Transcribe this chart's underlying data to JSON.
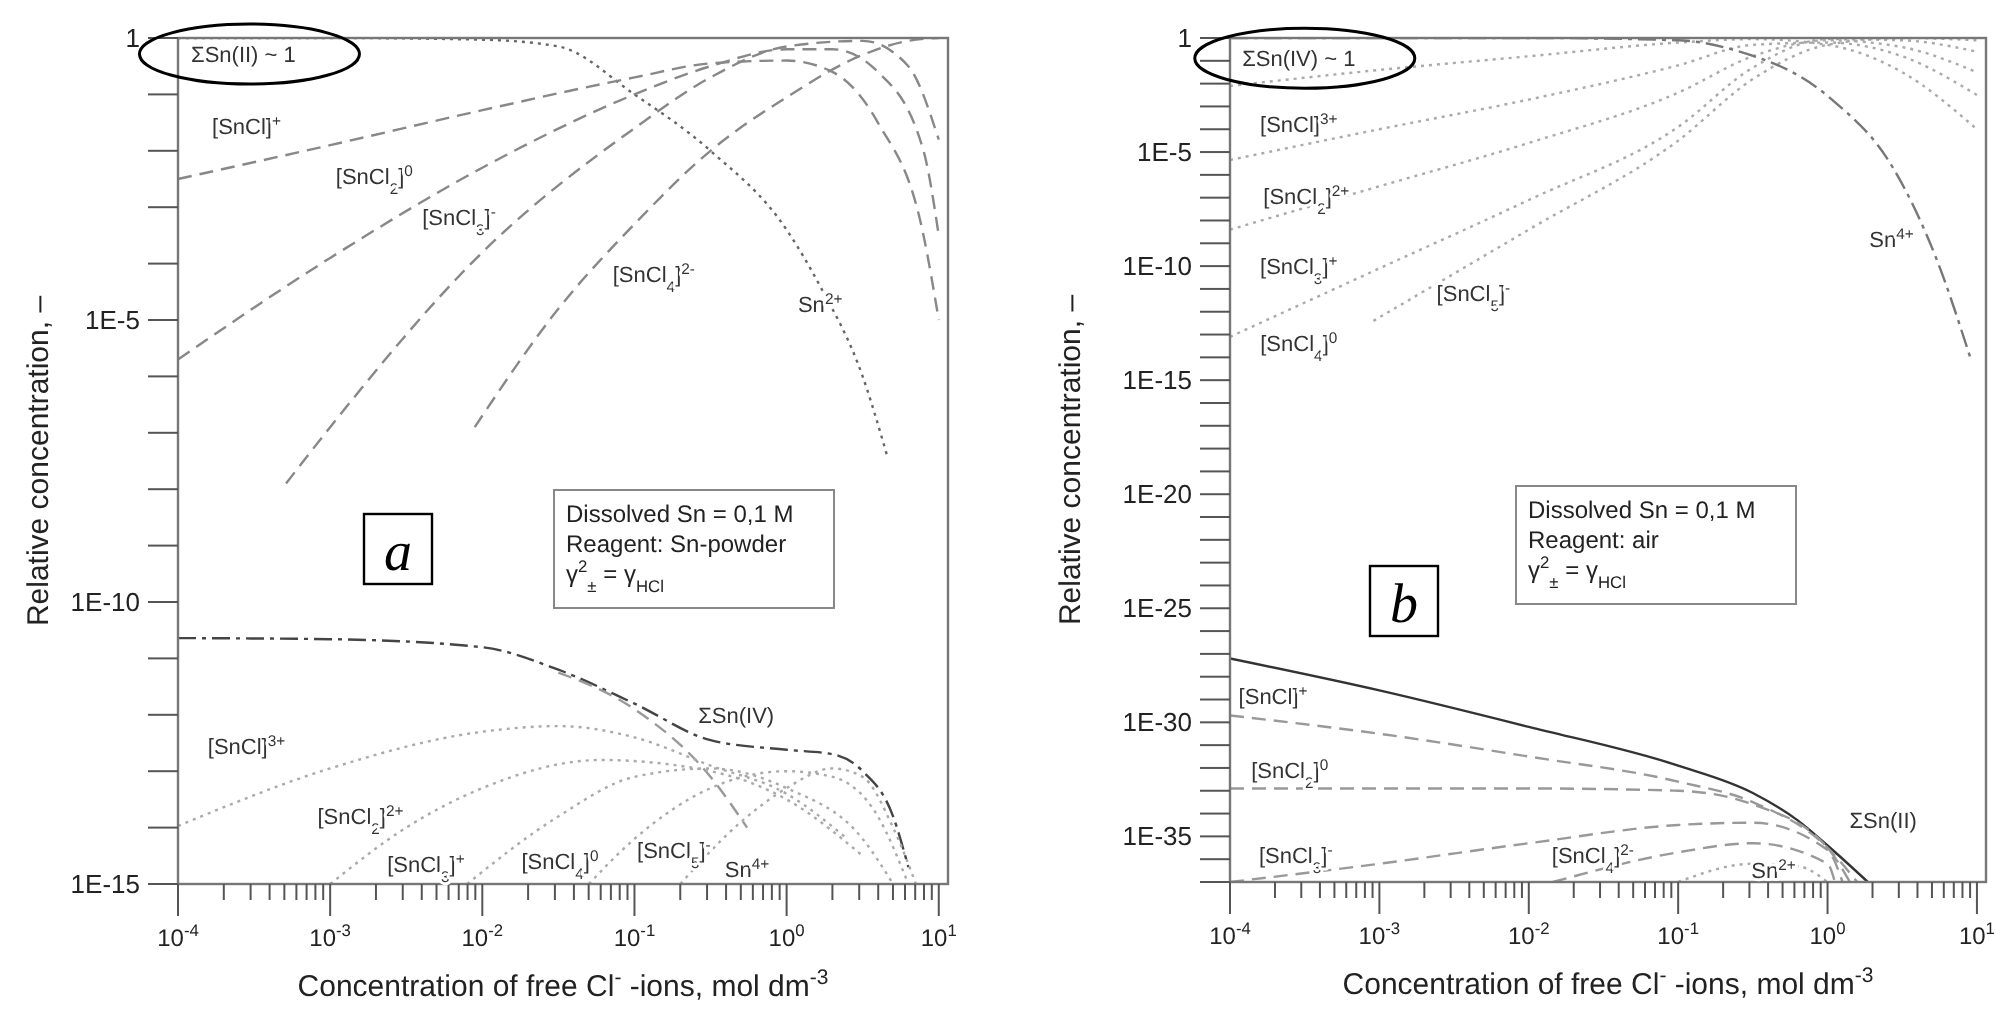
{
  "chart_data": [
    {
      "type": "line",
      "title": "a",
      "xlabel": "Concentration of free Cl$^{-}$ -ions, mol dm$^{-3}$",
      "ylabel": "Relative concentration, –",
      "log": "xy",
      "xlim": [
        0.0001,
        11.5
      ],
      "ylim": [
        1e-15,
        1
      ],
      "xticks": [
        {
          "value": 0.0001,
          "label": "10$^{-4}$"
        },
        {
          "value": 0.0002,
          "label": null
        },
        {
          "value": 0.0003,
          "label": null
        },
        {
          "value": 0.0004,
          "label": null
        },
        {
          "value": 0.0005,
          "label": null
        },
        {
          "value": 0.0006,
          "label": null
        },
        {
          "value": 0.0007,
          "label": null
        },
        {
          "value": 0.0008,
          "label": null
        },
        {
          "value": 0.0009,
          "label": null
        },
        {
          "value": 0.001,
          "label": "10$^{-3}$"
        },
        {
          "value": 0.002,
          "label": null
        },
        {
          "value": 0.003,
          "label": null
        },
        {
          "value": 0.004,
          "label": null
        },
        {
          "value": 0.005,
          "label": null
        },
        {
          "value": 0.006,
          "label": null
        },
        {
          "value": 0.007,
          "label": null
        },
        {
          "value": 0.008,
          "label": null
        },
        {
          "value": 0.009,
          "label": null
        },
        {
          "value": 0.01,
          "label": "10$^{-2}$"
        },
        {
          "value": 0.02,
          "label": null
        },
        {
          "value": 0.03,
          "label": null
        },
        {
          "value": 0.04,
          "label": null
        },
        {
          "value": 0.05,
          "label": null
        },
        {
          "value": 0.06,
          "label": null
        },
        {
          "value": 0.07,
          "label": null
        },
        {
          "value": 0.08,
          "label": null
        },
        {
          "value": 0.09,
          "label": null
        },
        {
          "value": 0.1,
          "label": "10$^{-1}$"
        },
        {
          "value": 0.2,
          "label": null
        },
        {
          "value": 0.3,
          "label": null
        },
        {
          "value": 0.4,
          "label": null
        },
        {
          "value": 0.5,
          "label": null
        },
        {
          "value": 0.6,
          "label": null
        },
        {
          "value": 0.7,
          "label": null
        },
        {
          "value": 0.8,
          "label": null
        },
        {
          "value": 0.9,
          "label": null
        },
        {
          "value": 1,
          "label": "10$^{0}$"
        },
        {
          "value": 2,
          "label": null
        },
        {
          "value": 3,
          "label": null
        },
        {
          "value": 4,
          "label": null
        },
        {
          "value": 5,
          "label": null
        },
        {
          "value": 6,
          "label": null
        },
        {
          "value": 7,
          "label": null
        },
        {
          "value": 8,
          "label": null
        },
        {
          "value": 9,
          "label": null
        },
        {
          "value": 10,
          "label": "10$^{1}$"
        }
      ],
      "yticks": [
        1,
        {
          "value": 0.1,
          "label": null
        },
        {
          "value": 0.01,
          "label": null
        },
        {
          "value": 0.001,
          "label": null
        },
        {
          "value": 0.0001,
          "label": null
        },
        {
          "value": 1e-05,
          "label": "1E-5"
        },
        {
          "value": 1e-06,
          "label": null
        },
        {
          "value": 1e-07,
          "label": null
        },
        {
          "value": 1e-08,
          "label": null
        },
        {
          "value": 1e-09,
          "label": null
        },
        {
          "value": 1e-10,
          "label": "1E-10"
        },
        {
          "value": 1e-11,
          "label": null
        },
        {
          "value": 1e-12,
          "label": null
        },
        {
          "value": 1e-13,
          "label": null
        },
        {
          "value": 1e-14,
          "label": null
        },
        {
          "value": 1e-15,
          "label": "1E-15"
        }
      ],
      "series": [
        {
          "color": "#666666",
          "line_style": "dotted",
          "x": [
            0.0001,
            0.001,
            0.01,
            0.0316,
            0.1,
            0.316,
            1,
            1.66,
            3.16,
            4.57
          ],
          "values": [
            1,
            1,
            0.933,
            0.708,
            0.1,
            0.01,
            0.000398,
            3.98e-05,
            1e-06,
            3.98e-08
          ]
        },
        {
          "color": "#888888",
          "line_style": "dashed",
          "x": [
            0.0001,
            0.001,
            0.01,
            0.1,
            0.316,
            1,
            2,
            3.98,
            7.94,
            10
          ],
          "values": [
            0.00316,
            0.0126,
            0.0525,
            0.2,
            0.355,
            0.398,
            0.251,
            0.0316,
            0.000316,
            1e-05
          ]
        },
        {
          "color": "#888888",
          "line_style": "dashed",
          "x": [
            0.0001,
            0.001,
            0.01,
            0.1,
            0.316,
            1,
            2,
            3.98,
            7.94,
            10
          ],
          "values": [
            2e-06,
            0.000126,
            0.00501,
            0.1,
            0.316,
            0.631,
            0.631,
            0.251,
            0.01,
            0.000316
          ]
        },
        {
          "color": "#888888",
          "line_style": "dashed",
          "x": [
            0.000513,
            0.001,
            0.01,
            0.1,
            0.316,
            1,
            3.16,
            6.31,
            10
          ],
          "values": [
            1.26e-08,
            1.26e-07,
            0.000158,
            0.0251,
            0.2,
            0.708,
            0.891,
            0.316,
            0.0158
          ]
        },
        {
          "color": "#888888",
          "line_style": "dashed",
          "x": [
            0.00891,
            0.0316,
            0.1,
            0.316,
            1,
            3.16,
            6.31,
            10
          ],
          "values": [
            1.26e-07,
            1.58e-05,
            0.000501,
            0.01,
            0.0891,
            0.501,
            0.891,
            1
          ]
        },
        {
          "color": "#444444",
          "line_style": "dashdot",
          "x": [
            0.0001,
            0.001,
            0.01,
            0.0316,
            0.1,
            0.316,
            1,
            2,
            3.16,
            5.01,
            6.31
          ],
          "values": [
            2.29e-11,
            2.19e-11,
            1.58e-11,
            6.31e-12,
            1.58e-12,
            3.55e-13,
            2.4e-13,
            2e-13,
            1e-13,
            1.58e-14,
            2e-15
          ]
        },
        {
          "color": "#999999",
          "line_style": "dashed",
          "x": [
            0.0316,
            0.1,
            0.316,
            0.55
          ],
          "values": [
            5.62e-12,
            1.26e-12,
            7.94e-14,
            1e-14
          ]
        },
        {
          "color": "#aaaaaa",
          "line_style": "dotted",
          "x": [
            0.0001,
            0.001,
            0.01,
            0.0316,
            0.1,
            0.316,
            1,
            2.51
          ],
          "values": [
            1.07e-14,
            1.12e-13,
            5.01e-13,
            6.31e-13,
            3.98e-13,
            1.26e-13,
            3.98e-14,
            6.31e-15
          ]
        },
        {
          "color": "#aaaaaa",
          "line_style": "dotted",
          "x": [
            0.001,
            0.00316,
            0.01,
            0.0603,
            0.316,
            1,
            3.16
          ],
          "values": [
            1e-15,
            1e-14,
            5.01e-14,
            1.58e-13,
            1e-13,
            3.16e-14,
            3.16e-15
          ]
        },
        {
          "color": "#aaaaaa",
          "line_style": "dotted",
          "x": [
            0.00794,
            0.0316,
            0.1,
            0.316,
            1,
            3.16,
            5.01
          ],
          "values": [
            1e-15,
            1.58e-14,
            7.94e-14,
            1.12e-13,
            5.01e-14,
            6.31e-15,
            1e-15
          ]
        },
        {
          "color": "#aaaaaa",
          "line_style": "dotted",
          "x": [
            0.0501,
            0.1,
            0.316,
            1,
            2,
            3.98,
            6.31
          ],
          "values": [
            1e-15,
            6.31e-15,
            5.01e-14,
            1e-13,
            7.94e-14,
            1.58e-14,
            1e-15
          ]
        },
        {
          "color": "#aaaaaa",
          "line_style": "dotted",
          "x": [
            0.2,
            0.501,
            1,
            2,
            3.16,
            5.01,
            7.08
          ],
          "values": [
            1e-15,
            1.26e-14,
            5.01e-14,
            1.12e-13,
            7.94e-14,
            1e-14,
            1e-15
          ]
        }
      ],
      "annotations": [
        "ΣSn(II) ~ 1",
        "[SnCl]$^{+}$",
        "[SnCl$_{2}$]$^{0}$",
        "[SnCl$_{3}$]$^{-}$",
        "[SnCl$_{4}$]$^{2-}$",
        "Sn$^{2+}$",
        "ΣSn(IV)",
        "[SnCl]$^{3+}$",
        "[SnCl$_{2}$]$^{2+}$",
        "[SnCl$_{3}$]$^{+}$",
        "[SnCl$_{4}$]$^{0}$",
        "[SnCl$_{5}$]$^{-}$",
        "Sn$^{4+}$",
        "Dissolved Sn = 0,1 M",
        "Reagent: Sn-powder",
        "γ$^{2}$$_{±}$ = γ$_{HCl}$"
      ]
    },
    {
      "type": "line",
      "title": "b",
      "xlabel": "Concentration of free Cl$^{-}$ -ions,  mol dm$^{-3}$",
      "ylabel": "Relative concentration, –",
      "log": "xy",
      "xlim": [
        0.0001,
        11.5
      ],
      "ylim": [
        1e-37,
        1
      ],
      "xticks": [
        {
          "value": 0.0001,
          "label": "10$^{-4}$"
        },
        {
          "value": 0.0002,
          "label": null
        },
        {
          "value": 0.0003,
          "label": null
        },
        {
          "value": 0.0004,
          "label": null
        },
        {
          "value": 0.0005,
          "label": null
        },
        {
          "value": 0.0006,
          "label": null
        },
        {
          "value": 0.0007,
          "label": null
        },
        {
          "value": 0.0008,
          "label": null
        },
        {
          "value": 0.0009,
          "label": null
        },
        {
          "value": 0.001,
          "label": "10$^{-3}$"
        },
        {
          "value": 0.002,
          "label": null
        },
        {
          "value": 0.003,
          "label": null
        },
        {
          "value": 0.004,
          "label": null
        },
        {
          "value": 0.005,
          "label": null
        },
        {
          "value": 0.006,
          "label": null
        },
        {
          "value": 0.007,
          "label": null
        },
        {
          "value": 0.008,
          "label": null
        },
        {
          "value": 0.009,
          "label": null
        },
        {
          "value": 0.01,
          "label": "10$^{-2}$"
        },
        {
          "value": 0.02,
          "label": null
        },
        {
          "value": 0.03,
          "label": null
        },
        {
          "value": 0.04,
          "label": null
        },
        {
          "value": 0.05,
          "label": null
        },
        {
          "value": 0.06,
          "label": null
        },
        {
          "value": 0.07,
          "label": null
        },
        {
          "value": 0.08,
          "label": null
        },
        {
          "value": 0.09,
          "label": null
        },
        {
          "value": 0.1,
          "label": "10$^{-1}$"
        },
        {
          "value": 0.2,
          "label": null
        },
        {
          "value": 0.3,
          "label": null
        },
        {
          "value": 0.4,
          "label": null
        },
        {
          "value": 0.5,
          "label": null
        },
        {
          "value": 0.6,
          "label": null
        },
        {
          "value": 0.7,
          "label": null
        },
        {
          "value": 0.8,
          "label": null
        },
        {
          "value": 0.9,
          "label": null
        },
        {
          "value": 1,
          "label": "10$^{0}$"
        },
        {
          "value": 2,
          "label": null
        },
        {
          "value": 3,
          "label": null
        },
        {
          "value": 4,
          "label": null
        },
        {
          "value": 5,
          "label": null
        },
        {
          "value": 6,
          "label": null
        },
        {
          "value": 7,
          "label": null
        },
        {
          "value": 8,
          "label": null
        },
        {
          "value": 9,
          "label": null
        },
        {
          "value": 10,
          "label": "10$^{1}$"
        }
      ],
      "yticks": [
        1,
        {
          "value": 0.1,
          "label": null
        },
        {
          "value": 0.01,
          "label": null
        },
        {
          "value": 0.001,
          "label": null
        },
        {
          "value": 0.0001,
          "label": null
        },
        {
          "value": 1e-05,
          "label": "1E-5"
        },
        {
          "value": 1e-06,
          "label": null
        },
        {
          "value": 1e-07,
          "label": null
        },
        {
          "value": 1e-08,
          "label": null
        },
        {
          "value": 1e-09,
          "label": null
        },
        {
          "value": 1e-10,
          "label": "1E-10"
        },
        {
          "value": 1e-11,
          "label": null
        },
        {
          "value": 1e-12,
          "label": null
        },
        {
          "value": 1e-13,
          "label": null
        },
        {
          "value": 1e-14,
          "label": null
        },
        {
          "value": 1e-15,
          "label": "1E-15"
        },
        {
          "value": 1e-16,
          "label": null
        },
        {
          "value": 1e-17,
          "label": null
        },
        {
          "value": 1e-18,
          "label": null
        },
        {
          "value": 1e-19,
          "label": null
        },
        {
          "value": 1e-20,
          "label": "1E-20"
        },
        {
          "value": 1e-21,
          "label": null
        },
        {
          "value": 1e-22,
          "label": null
        },
        {
          "value": 1e-23,
          "label": null
        },
        {
          "value": 1e-24,
          "label": null
        },
        {
          "value": 1e-25,
          "label": "1E-25"
        },
        {
          "value": 1e-26,
          "label": null
        },
        {
          "value": 1e-27,
          "label": null
        },
        {
          "value": 1e-28,
          "label": null
        },
        {
          "value": 1e-29,
          "label": null
        },
        {
          "value": 1e-30,
          "label": "1E-30"
        },
        {
          "value": 1e-31,
          "label": null
        },
        {
          "value": 1e-32,
          "label": null
        },
        {
          "value": 1e-33,
          "label": null
        },
        {
          "value": 1e-34,
          "label": null
        },
        {
          "value": 1e-35,
          "label": "1E-35"
        },
        {
          "value": 1e-36,
          "label": null
        },
        {
          "value": 1e-37,
          "label": null
        }
      ],
      "series": [
        {
          "color": "#aaaaaa",
          "line_style": "dotted",
          "x": [
            0.0001,
            0.001,
            0.01,
            0.1,
            0.316,
            1,
            3.16,
            10
          ],
          "values": [
            0.00794,
            0.0398,
            0.158,
            0.631,
            0.891,
            0.501,
            0.0316,
            0.0001
          ]
        },
        {
          "color": "#aaaaaa",
          "line_style": "dotted",
          "x": [
            0.0001,
            0.001,
            0.01,
            0.1,
            0.316,
            1,
            3.16,
            10
          ],
          "values": [
            4.47e-06,
            0.0001,
            0.002,
            0.0631,
            0.501,
            0.631,
            0.158,
            0.00316
          ]
        },
        {
          "color": "#aaaaaa",
          "line_style": "dotted",
          "x": [
            0.0001,
            0.001,
            0.01,
            0.1,
            0.316,
            1,
            3.16,
            10
          ],
          "values": [
            3.98e-09,
            3.16e-07,
            2.51e-05,
            0.00398,
            0.158,
            0.794,
            0.398,
            0.0316
          ]
        },
        {
          "color": "#aaaaaa",
          "line_style": "dotted",
          "x": [
            0.0001,
            0.001,
            0.01,
            0.1,
            0.316,
            1,
            3.16,
            10
          ],
          "values": [
            7.94e-14,
            7.94e-11,
            7.94e-08,
            0.000126,
            0.0501,
            0.891,
            0.794,
            0.251
          ]
        },
        {
          "color": "#aaaaaa",
          "line_style": "dotted",
          "x": [
            0.000912,
            0.01,
            0.1,
            0.316,
            1,
            3.16,
            10
          ],
          "values": [
            3.98e-13,
            3.98e-09,
            3.16e-05,
            0.0158,
            0.501,
            1,
            0.794
          ]
        },
        {
          "color": "#777777",
          "line_style": "dashdot",
          "x": [
            0.0001,
            0.01,
            0.1,
            0.229,
            1.07,
            2.69,
            5.37,
            9.12
          ],
          "values": [
            1,
            1,
            0.794,
            0.316,
            0.002,
            2.51e-06,
            2e-10,
            7.94e-15
          ]
        },
        {
          "color": "#333333",
          "line_style": "solid",
          "x": [
            0.0001,
            0.001,
            0.01,
            0.1,
            0.316,
            0.631,
            1,
            1.86
          ],
          "values": [
            6.31e-28,
            2.51e-29,
            6.31e-31,
            1.26e-32,
            7.94e-34,
            5.01e-35,
            3.98e-36,
            1e-37
          ]
        },
        {
          "color": "#999999",
          "line_style": "dashed",
          "x": [
            0.0001,
            0.001,
            0.01,
            0.1,
            0.316,
            1,
            1.58
          ],
          "values": [
            2e-30,
            3.16e-31,
            3.16e-32,
            2.51e-33,
            3.16e-34,
            3.16e-36,
            1e-37
          ]
        },
        {
          "color": "#999999",
          "line_style": "dashed",
          "x": [
            0.0001,
            0.01,
            0.1,
            0.316,
            1,
            1.41
          ],
          "values": [
            1.26e-33,
            1.26e-33,
            1e-33,
            2.51e-34,
            3.16e-36,
            1e-37
          ]
        },
        {
          "color": "#999999",
          "line_style": "dashed",
          "x": [
            0.0001,
            0.001,
            0.01,
            0.1,
            0.316,
            1,
            1.26
          ],
          "values": [
            1e-37,
            6.31e-37,
            5.01e-36,
            3.16e-35,
            3.98e-35,
            2.51e-36,
            1e-37
          ]
        },
        {
          "color": "#999999",
          "line_style": "dashed",
          "x": [
            0.0145,
            0.1,
            0.316,
            1,
            1.12
          ],
          "values": [
            1e-37,
            2e-36,
            5.01e-36,
            6.31e-37,
            1e-37
          ]
        },
        {
          "color": "#aaaaaa",
          "line_style": "dotted",
          "x": [
            0.1,
            0.316,
            0.631,
            1
          ],
          "values": [
            1e-37,
            6.31e-37,
            5.01e-37,
            1e-37
          ]
        }
      ],
      "annotations": [
        "ΣSn(IV) ~ 1",
        "[SnCl]$^{3+}$",
        "[SnCl$_{2}$]$^{2+}$",
        "[SnCl$_{3}$]$^{+}$",
        "[SnCl$_{5}$]$^{-}$",
        "[SnCl$_{4}$]$^{0}$",
        "Sn$^{4+}$",
        "[SnCl]$^{+}$",
        "[SnCl$_{2}$]$^{0}$",
        "[SnCl$_{3}$]$^{-}$",
        "[SnCl$_{4}$]$^{2-}$",
        "Sn$^{2+}$",
        "ΣSn(II)",
        "Dissolved Sn = 0,1 M",
        "Reagent: air",
        "γ$^{2}$$_{±}$ = γ$_{HCl}$"
      ]
    }
  ]
}
